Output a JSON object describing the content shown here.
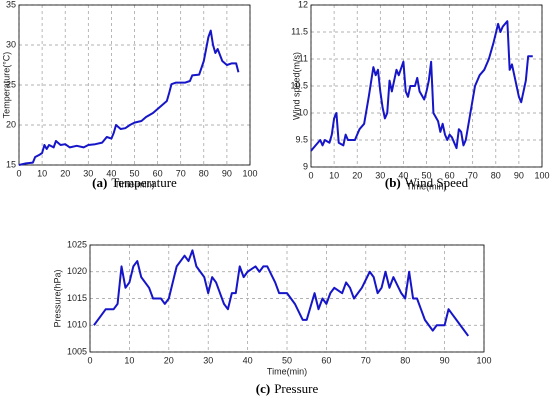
{
  "chart_data": [
    {
      "type": "line",
      "caption_label": "(a)",
      "caption": "Temperature",
      "xlabel": "Time(min)",
      "ylabel": "Temperature(°C)",
      "xlim": [
        0,
        100
      ],
      "xticks": [
        0,
        10,
        20,
        30,
        40,
        50,
        60,
        70,
        80,
        90,
        100
      ],
      "ylim": [
        15,
        35
      ],
      "yticks": [
        15,
        20,
        25,
        30,
        35
      ],
      "grid": true,
      "series": [
        {
          "color": "#1616c8",
          "x": [
            0,
            3,
            6,
            7,
            9,
            10,
            11,
            12,
            13,
            15,
            16,
            18,
            20,
            22,
            25,
            28,
            30,
            33,
            36,
            38,
            40,
            41,
            42,
            44,
            46,
            48,
            50,
            53,
            55,
            58,
            60,
            62,
            64,
            65,
            66,
            68,
            72,
            74,
            75,
            78,
            80,
            82,
            83,
            84,
            85,
            86,
            88,
            90,
            92,
            94,
            95
          ],
          "values": [
            15,
            15.2,
            15.3,
            16,
            16.3,
            16.5,
            17.5,
            17,
            17.5,
            17.2,
            18,
            17.5,
            17.6,
            17.2,
            17.4,
            17.2,
            17.5,
            17.6,
            17.8,
            18.5,
            18.3,
            19,
            20,
            19.5,
            19.6,
            20,
            20.3,
            20.5,
            21,
            21.5,
            22,
            22.5,
            23,
            24,
            25.1,
            25.3,
            25.3,
            25.5,
            26.2,
            26.3,
            28,
            31,
            31.8,
            30,
            29,
            29.5,
            28,
            27.5,
            27.7,
            27.7,
            26.6
          ]
        }
      ]
    },
    {
      "type": "line",
      "caption_label": "(b)",
      "caption": "Wind Speed",
      "xlabel": "Time(min)",
      "ylabel": "Wind speed(m/s)",
      "xlim": [
        0,
        100
      ],
      "xticks": [
        0,
        10,
        20,
        30,
        40,
        50,
        60,
        70,
        80,
        90,
        100
      ],
      "ylim": [
        9,
        12
      ],
      "yticks": [
        9,
        9.5,
        10,
        10.5,
        11,
        11.5,
        12
      ],
      "grid": true,
      "series": [
        {
          "color": "#1616c8",
          "x": [
            0,
            2,
            4,
            5,
            6,
            8,
            9,
            10,
            11,
            12,
            14,
            15,
            16,
            19,
            21,
            23,
            25,
            27,
            28,
            29,
            30,
            31,
            32,
            33,
            34,
            35,
            36,
            37,
            38,
            40,
            41,
            42,
            43,
            45,
            46,
            47,
            49,
            50,
            51,
            52,
            53,
            55,
            56,
            57,
            58,
            59,
            60,
            61,
            62,
            63,
            64,
            65,
            66,
            67,
            69,
            71,
            73,
            75,
            77,
            79,
            81,
            82,
            83,
            85,
            86,
            87,
            88,
            90,
            91,
            93,
            94,
            96
          ],
          "values": [
            9.3,
            9.4,
            9.5,
            9.4,
            9.5,
            9.45,
            9.6,
            9.9,
            10,
            9.45,
            9.4,
            9.6,
            9.5,
            9.5,
            9.7,
            9.8,
            10.3,
            10.85,
            10.7,
            10.8,
            10.4,
            10.1,
            9.9,
            10,
            10.6,
            10.4,
            10.6,
            10.8,
            10.7,
            10.95,
            10.4,
            10.3,
            10.5,
            10.5,
            10.65,
            10.4,
            10.25,
            10.4,
            10.6,
            10.95,
            10,
            9.85,
            9.65,
            9.8,
            9.6,
            9.5,
            9.6,
            9.55,
            9.45,
            9.35,
            9.7,
            9.65,
            9.4,
            9.5,
            10,
            10.5,
            10.7,
            10.8,
            11,
            11.3,
            11.65,
            11.5,
            11.6,
            11.7,
            10.8,
            10.9,
            10.7,
            10.3,
            10.2,
            10.6,
            11.05,
            11.05
          ]
        }
      ]
    },
    {
      "type": "line",
      "caption_label": "(c)",
      "caption": "Pressure",
      "xlabel": "Time(min)",
      "ylabel": "Pressure(hPa)",
      "xlim": [
        0,
        100
      ],
      "xticks": [
        0,
        10,
        20,
        30,
        40,
        50,
        60,
        70,
        80,
        90,
        100
      ],
      "ylim": [
        1005,
        1025
      ],
      "yticks": [
        1005,
        1010,
        1015,
        1020,
        1025
      ],
      "grid": true,
      "series": [
        {
          "color": "#1616c8",
          "x": [
            1,
            3,
            4,
            6,
            7,
            8,
            9,
            10,
            11,
            12,
            13,
            15,
            16,
            18,
            19,
            20,
            22,
            23,
            24,
            25,
            26,
            27,
            29,
            30,
            31,
            32,
            34,
            35,
            36,
            37,
            38,
            39,
            40,
            42,
            43,
            44,
            45,
            47,
            48,
            50,
            52,
            54,
            55,
            57,
            58,
            59,
            60,
            61,
            62,
            64,
            65,
            66,
            67,
            69,
            71,
            72,
            73,
            74,
            75,
            76,
            77,
            79,
            80,
            81,
            82,
            83,
            84,
            85,
            86,
            87,
            88,
            90,
            91,
            92,
            93,
            94,
            96
          ],
          "values": [
            1010,
            1012,
            1013,
            1013,
            1014,
            1021,
            1017,
            1018,
            1021,
            1022,
            1019,
            1017,
            1015,
            1015,
            1014,
            1015,
            1021,
            1022,
            1023,
            1022,
            1024,
            1021,
            1019,
            1016,
            1019,
            1018,
            1014,
            1013,
            1016,
            1016,
            1021,
            1019,
            1020,
            1021,
            1020,
            1021,
            1021,
            1018,
            1016,
            1016,
            1014,
            1011,
            1011,
            1016,
            1013,
            1015,
            1014,
            1016,
            1017,
            1016,
            1018,
            1017,
            1015,
            1017,
            1020,
            1019,
            1016,
            1017,
            1020,
            1017,
            1019,
            1016,
            1015,
            1020,
            1015,
            1015,
            1013,
            1011,
            1010,
            1009,
            1010,
            1010,
            1013,
            1012,
            1011,
            1010,
            1008
          ]
        }
      ]
    }
  ]
}
